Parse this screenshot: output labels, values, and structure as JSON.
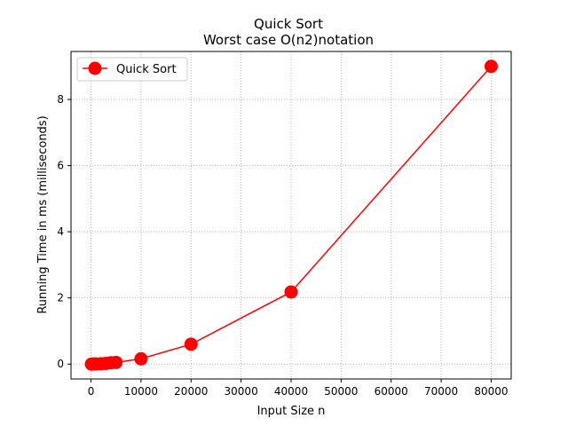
{
  "chart_data": {
    "type": "line",
    "title": "Quick Sort",
    "subtitle": "Worst case O(n2)notation",
    "xlabel": "Input Size n",
    "ylabel": "Running Time in ms (milliseconds)",
    "xlim": [
      -4000,
      84000
    ],
    "ylim": [
      -0.45,
      9.45
    ],
    "x_ticks": [
      0,
      10000,
      20000,
      30000,
      40000,
      50000,
      60000,
      70000,
      80000
    ],
    "y_ticks": [
      0,
      2,
      4,
      6,
      8
    ],
    "grid": true,
    "grid_style": "dotted",
    "legend_position": "upper-left",
    "series": [
      {
        "name": "Quick Sort",
        "color": "#ff0000",
        "marker": "circle",
        "x": [
          100,
          500,
          1000,
          2000,
          3000,
          4000,
          5000,
          10000,
          20000,
          40000,
          80000
        ],
        "y": [
          0.0,
          0.002,
          0.004,
          0.01,
          0.02,
          0.04,
          0.05,
          0.16,
          0.6,
          2.18,
          9.0
        ]
      }
    ]
  }
}
